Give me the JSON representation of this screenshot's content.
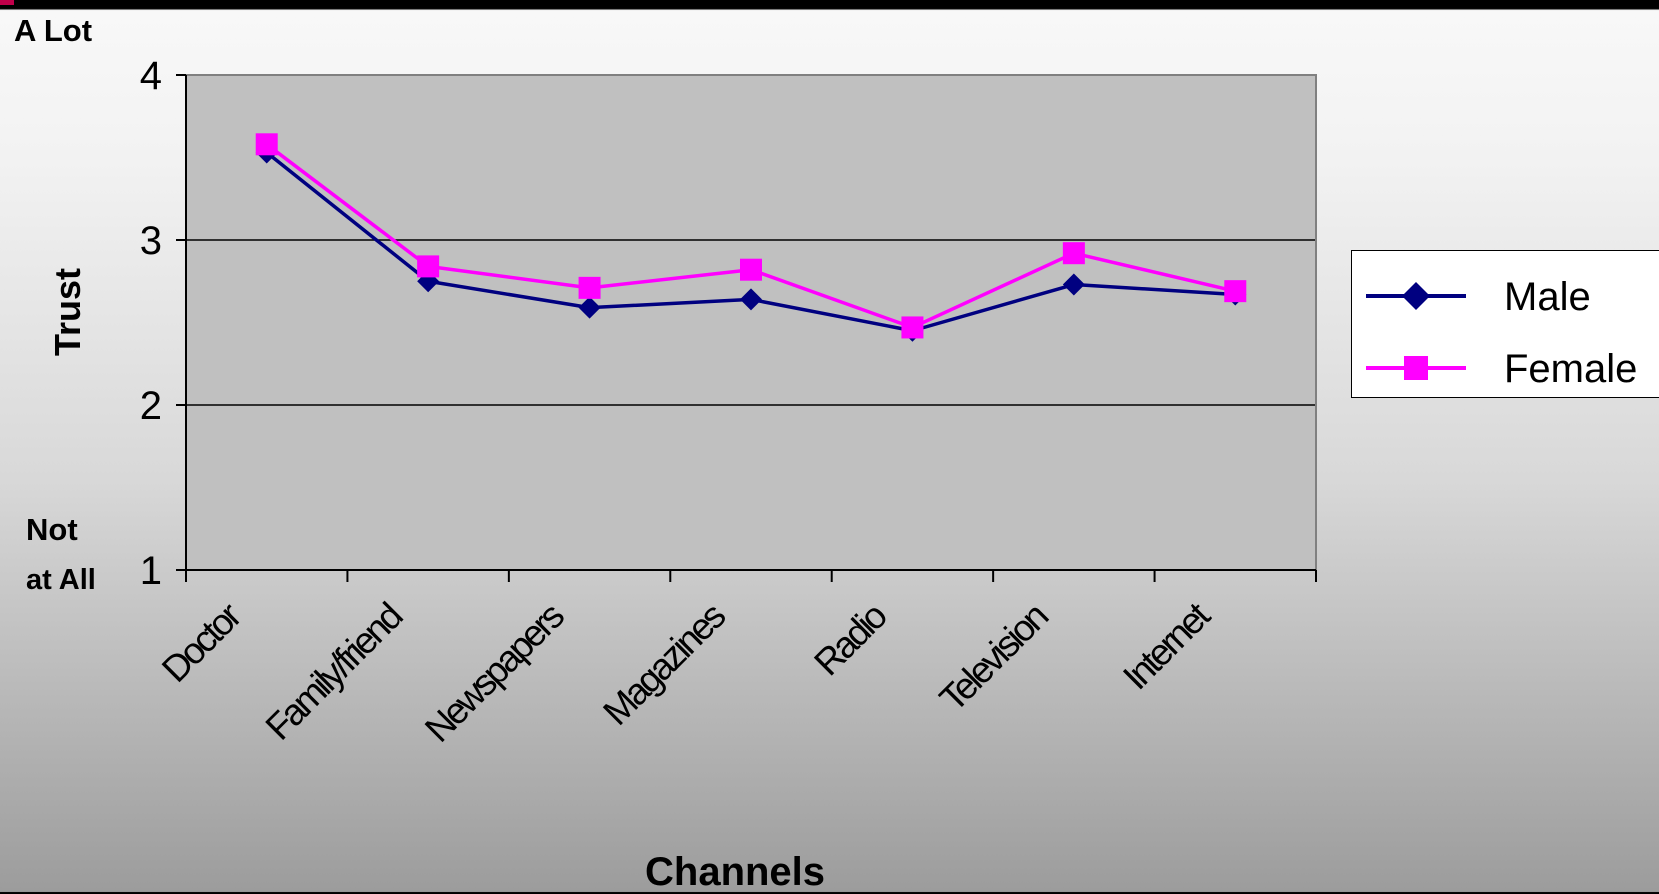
{
  "chart_data": {
    "type": "line",
    "categories": [
      "Doctor",
      "Family/friend",
      "Newspapers",
      "Magazines",
      "Radio",
      "Television",
      "Internet"
    ],
    "series": [
      {
        "name": "Male",
        "values": [
          3.53,
          2.75,
          2.59,
          2.64,
          2.45,
          2.73,
          2.67
        ],
        "color": "#000080",
        "marker": "diamond"
      },
      {
        "name": "Female",
        "values": [
          3.58,
          2.84,
          2.71,
          2.82,
          2.47,
          2.92,
          2.69
        ],
        "color": "#ff00ff",
        "marker": "square"
      }
    ],
    "ylabel": "Trust",
    "xlabel": "Channels",
    "ylim": [
      1,
      4
    ],
    "yticks": [
      "1",
      "2",
      "3",
      "4"
    ],
    "ytick_values": [
      1,
      2,
      3,
      4
    ],
    "top_annotation": "A Lot",
    "bottom_annotation": [
      "Not",
      "at All"
    ],
    "grid": true,
    "plot_background": "#c0c0c0",
    "legend_position": "right"
  }
}
